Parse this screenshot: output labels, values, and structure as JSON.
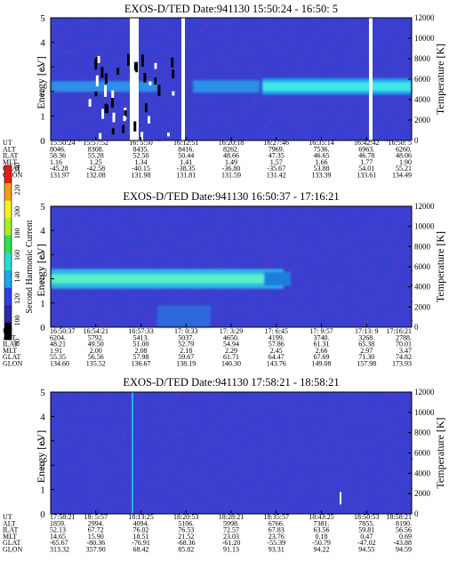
{
  "figure": {
    "colorbar": {
      "label": "Second Harmonic Current",
      "ticks": [
        "80",
        "100",
        "120",
        "140",
        "160",
        "180",
        "200",
        "220",
        "240"
      ]
    },
    "axis_labels": {
      "energy": "Energy [eV]",
      "temperature": "Temperature [K]"
    },
    "row_labels": [
      "UT",
      "ALT",
      "ILAT",
      "MLT",
      "GLAT",
      "GLON"
    ]
  },
  "chart_data": [
    {
      "type": "heatmap",
      "title": "EXOS-D/TED   Date:941130  15:50:24 - 16:50: 5",
      "ylabel": "Energy [eV]",
      "ylabel_right": "Temperature [K]",
      "ylim": [
        0,
        5
      ],
      "yticks": [
        "0",
        "1",
        "2",
        "3",
        "4",
        "5"
      ],
      "ylim_right": [
        0,
        12000
      ],
      "yticks_right": [
        "0",
        "2000",
        "4000",
        "6000",
        "8000",
        "10000",
        "12000"
      ],
      "band_center_ev": 2.2,
      "ephemeris": {
        "UT": [
          "15:50:24",
          "15:57:52",
          "16: 5:50",
          "16:12:51",
          "16:20:18",
          "16:27:46",
          "16:35:14",
          "16:42:42",
          "16:50: 5"
        ],
        "ALT": [
          "8046.",
          "8308.",
          "8435.",
          "8416.",
          "8262.",
          "7969.",
          "7536.",
          "6963.",
          "6260."
        ],
        "ILAT": [
          "58.36",
          "55.28",
          "52.50",
          "50.44",
          "48.66",
          "47.35",
          "46.65",
          "46.78",
          "48.06"
        ],
        "MLT": [
          "1.16",
          "1.25",
          "1.34",
          "1.41",
          "1.49",
          "1.57",
          "1.66",
          "1.77",
          "1.90"
        ],
        "GLAT": [
          "-45.28",
          "-42.58",
          "-40.15",
          "-38.35",
          "-36.80",
          "-35.67",
          "53.88",
          "54.01",
          "55.21"
        ],
        "GLON": [
          "131.97",
          "132.08",
          "131.98",
          "131.81",
          "131.59",
          "131.42",
          "133.39",
          "133.61",
          "134.49"
        ]
      }
    },
    {
      "type": "heatmap",
      "title": "EXOS-D/TED   Date:941130  16:50:37 - 17:16:21",
      "ylabel": "Energy [eV]",
      "ylabel_right": "Temperature [K]",
      "ylim": [
        0,
        5
      ],
      "yticks": [
        "0",
        "1",
        "2",
        "3",
        "4",
        "5"
      ],
      "ylim_right": [
        0,
        12000
      ],
      "yticks_right": [
        "0",
        "2000",
        "4000",
        "6000",
        "8000",
        "10000",
        "12000"
      ],
      "band_center_ev": 2.0,
      "ephemeris": {
        "UT": [
          "16:50:37",
          "16:54:21",
          "16:57:33",
          "17: 0:33",
          "17: 3:29",
          "17: 6:45",
          "17: 9:57",
          "17:13: 9",
          "17:16:21"
        ],
        "ALT": [
          "6204.",
          "5792.",
          "5413.",
          "5037.",
          "4650.",
          "4199.",
          "3740.",
          "3268.",
          "2788."
        ],
        "ILAT": [
          "48.21",
          "49.50",
          "51.00",
          "52.79",
          "54.94",
          "57.86",
          "61.31",
          "65.38",
          "70.01"
        ],
        "MLT": [
          "1.91",
          "2.00",
          "2.08",
          "2.18",
          "2.29",
          "2.45",
          "2.66",
          "2.97",
          "3.47"
        ],
        "GLAT": [
          "55.35",
          "56.56",
          "57.98",
          "59.67",
          "61.71",
          "64.47",
          "67.69",
          "71.30",
          "74.82"
        ],
        "GLON": [
          "134.60",
          "135.52",
          "136.67",
          "138.19",
          "140.30",
          "143.76",
          "149.08",
          "157.98",
          "173.93"
        ]
      }
    },
    {
      "type": "heatmap",
      "title": "EXOS-D/TED   Date:941130  17:58:21 - 18:58:21",
      "ylabel": "Energy [eV]",
      "ylabel_right": "Temperature [K]",
      "ylim": [
        0,
        5
      ],
      "yticks": [
        "0",
        "1",
        "2",
        "3",
        "4",
        "5"
      ],
      "ylim_right": [
        0,
        12000
      ],
      "yticks_right": [
        "0",
        "2000",
        "4000",
        "6000",
        "8000",
        "10000",
        "12000"
      ],
      "ephemeris": {
        "UT": [
          "17:58:21",
          "18: 5:57",
          "18:13:25",
          "18:20:53",
          "18:28:21",
          "18:35:57",
          "18:43:25",
          "18:50:53",
          "18:58:21"
        ],
        "ALT": [
          "1859.",
          "2994.",
          "4094.",
          "5106.",
          "5998.",
          "6766.",
          "7381.",
          "7855.",
          "8190."
        ],
        "ILAT": [
          "52.13",
          "67.72",
          "76.02",
          "76.53",
          "72.57",
          "67.83",
          "63.56",
          "59.81",
          "56.56"
        ],
        "MLT": [
          "14.65",
          "15.90",
          "18.51",
          "21.52",
          "23.03",
          "23.76",
          "0.18",
          "0.47",
          "0.69"
        ],
        "GLAT": [
          "-65.67",
          "-80.36",
          "-76.91",
          "-68.36",
          "-61.20",
          "-55.39",
          "-50.79",
          "-47.02",
          "-43.88"
        ],
        "GLON": [
          "313.32",
          "357.90",
          "68.42",
          "85.82",
          "91.13",
          "93.31",
          "94.22",
          "94.55",
          "94.59"
        ]
      }
    }
  ]
}
